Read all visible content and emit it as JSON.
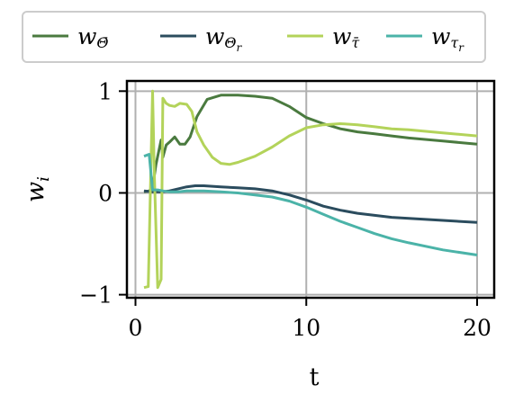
{
  "chart_data": {
    "type": "line",
    "xlabel": "t",
    "ylabel": "w",
    "ylabel_sub": "i",
    "xlim": [
      -0.5,
      21
    ],
    "ylim": [
      -1.03,
      1.1
    ],
    "xticks": [
      0,
      10,
      20
    ],
    "xtick_labels": [
      "0",
      "10",
      "20"
    ],
    "yticks": [
      -1,
      0,
      1
    ],
    "ytick_labels": [
      "−1",
      "0",
      "1"
    ],
    "grid": true,
    "legend_position": "top",
    "series": [
      {
        "name": "w_Θ̄",
        "name_main": "w",
        "name_sub": "Θ̄",
        "color": "#4a7a3f",
        "x": [
          0.5,
          0.8,
          1.0,
          1.2,
          1.5,
          1.6,
          1.8,
          2.0,
          2.3,
          2.6,
          2.9,
          3.2,
          3.6,
          4.2,
          5.0,
          5.5,
          6.0,
          7.0,
          8.0,
          9.0,
          10.0,
          11.0,
          12.0,
          13.0,
          14.0,
          15.0,
          16.0,
          18.0,
          20.0
        ],
        "y": [
          0.01,
          0.02,
          0.05,
          0.28,
          0.52,
          0.35,
          0.47,
          0.5,
          0.55,
          0.48,
          0.48,
          0.55,
          0.75,
          0.92,
          0.96,
          0.96,
          0.96,
          0.95,
          0.93,
          0.85,
          0.74,
          0.68,
          0.63,
          0.6,
          0.58,
          0.56,
          0.54,
          0.51,
          0.48
        ]
      },
      {
        "name": "w_Θr",
        "name_main": "w",
        "name_sub": "Θ",
        "name_subsub": "r",
        "color": "#2b4c5e",
        "x": [
          0.5,
          1.0,
          1.5,
          2.0,
          2.5,
          3.0,
          3.5,
          4.0,
          5.0,
          6.0,
          7.0,
          8.0,
          9.0,
          10.0,
          11.0,
          12.0,
          13.0,
          14.0,
          15.0,
          16.0,
          18.0,
          20.0
        ],
        "y": [
          0.02,
          0.01,
          0.01,
          0.02,
          0.04,
          0.06,
          0.07,
          0.07,
          0.06,
          0.05,
          0.04,
          0.02,
          -0.02,
          -0.07,
          -0.13,
          -0.17,
          -0.2,
          -0.22,
          -0.24,
          -0.25,
          -0.27,
          -0.29
        ]
      },
      {
        "name": "w_τ̄",
        "name_main": "w",
        "name_sub": "τ̄",
        "color": "#b3d35a",
        "x": [
          0.5,
          0.75,
          1.0,
          1.1,
          1.3,
          1.5,
          1.6,
          1.8,
          2.0,
          2.3,
          2.6,
          3.0,
          3.3,
          3.6,
          4.0,
          4.5,
          5.0,
          5.5,
          6.0,
          7.0,
          8.0,
          9.0,
          10.0,
          11.0,
          12.0,
          13.0,
          14.0,
          15.0,
          16.0,
          18.0,
          20.0
        ],
        "y": [
          -0.93,
          -0.92,
          1.0,
          0.2,
          -0.93,
          -0.85,
          0.93,
          0.88,
          0.86,
          0.85,
          0.88,
          0.87,
          0.8,
          0.6,
          0.47,
          0.35,
          0.29,
          0.28,
          0.3,
          0.36,
          0.45,
          0.56,
          0.64,
          0.67,
          0.68,
          0.67,
          0.65,
          0.63,
          0.62,
          0.59,
          0.56
        ]
      },
      {
        "name": "w_τr",
        "name_main": "w",
        "name_sub": "τ",
        "name_subsub": "r",
        "color": "#4bb3a8",
        "x": [
          0.5,
          0.8,
          1.0,
          1.3,
          1.6,
          2.0,
          2.5,
          3.0,
          3.5,
          4.0,
          5.0,
          6.0,
          7.0,
          8.0,
          9.0,
          10.0,
          11.0,
          12.0,
          13.0,
          14.0,
          15.0,
          16.0,
          18.0,
          20.0
        ],
        "y": [
          0.36,
          0.38,
          0.03,
          0.03,
          0.02,
          0.01,
          0.01,
          0.02,
          0.02,
          0.02,
          0.01,
          0.0,
          -0.02,
          -0.04,
          -0.08,
          -0.14,
          -0.21,
          -0.28,
          -0.34,
          -0.4,
          -0.45,
          -0.49,
          -0.56,
          -0.61
        ]
      }
    ]
  }
}
